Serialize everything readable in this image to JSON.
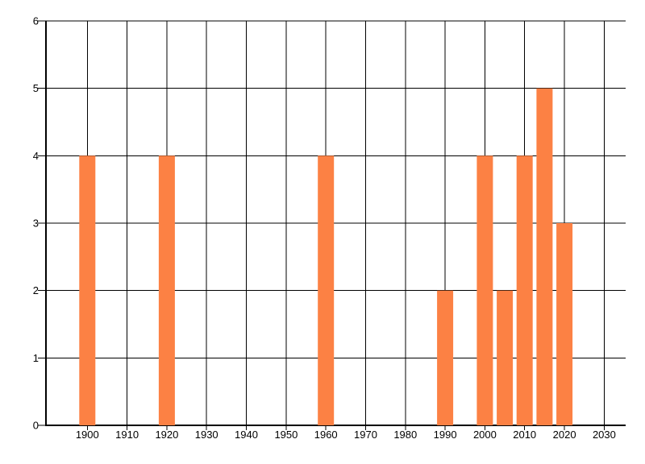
{
  "chart_data": {
    "type": "bar",
    "title": "",
    "xlabel": "",
    "ylabel": "",
    "x": [
      1900,
      1920,
      1960,
      1990,
      2000,
      2005,
      2010,
      2015,
      2020
    ],
    "values": [
      4,
      4,
      4,
      2,
      4,
      2,
      4,
      5,
      3
    ],
    "bar_width_years": 4,
    "xlim": [
      1889.6,
      2035.4
    ],
    "ylim": [
      0,
      6
    ],
    "xticks": [
      1900,
      1910,
      1920,
      1930,
      1940,
      1950,
      1960,
      1970,
      1980,
      1990,
      2000,
      2010,
      2020,
      2030
    ],
    "yticks": [
      0,
      1,
      2,
      3,
      4,
      5,
      6
    ],
    "grid": true,
    "legend": false,
    "bar_color": "#fc8144",
    "grid_color": "#000000",
    "axis_color": "#000000",
    "label_color": "#000000",
    "background_color": "#ffffff"
  }
}
